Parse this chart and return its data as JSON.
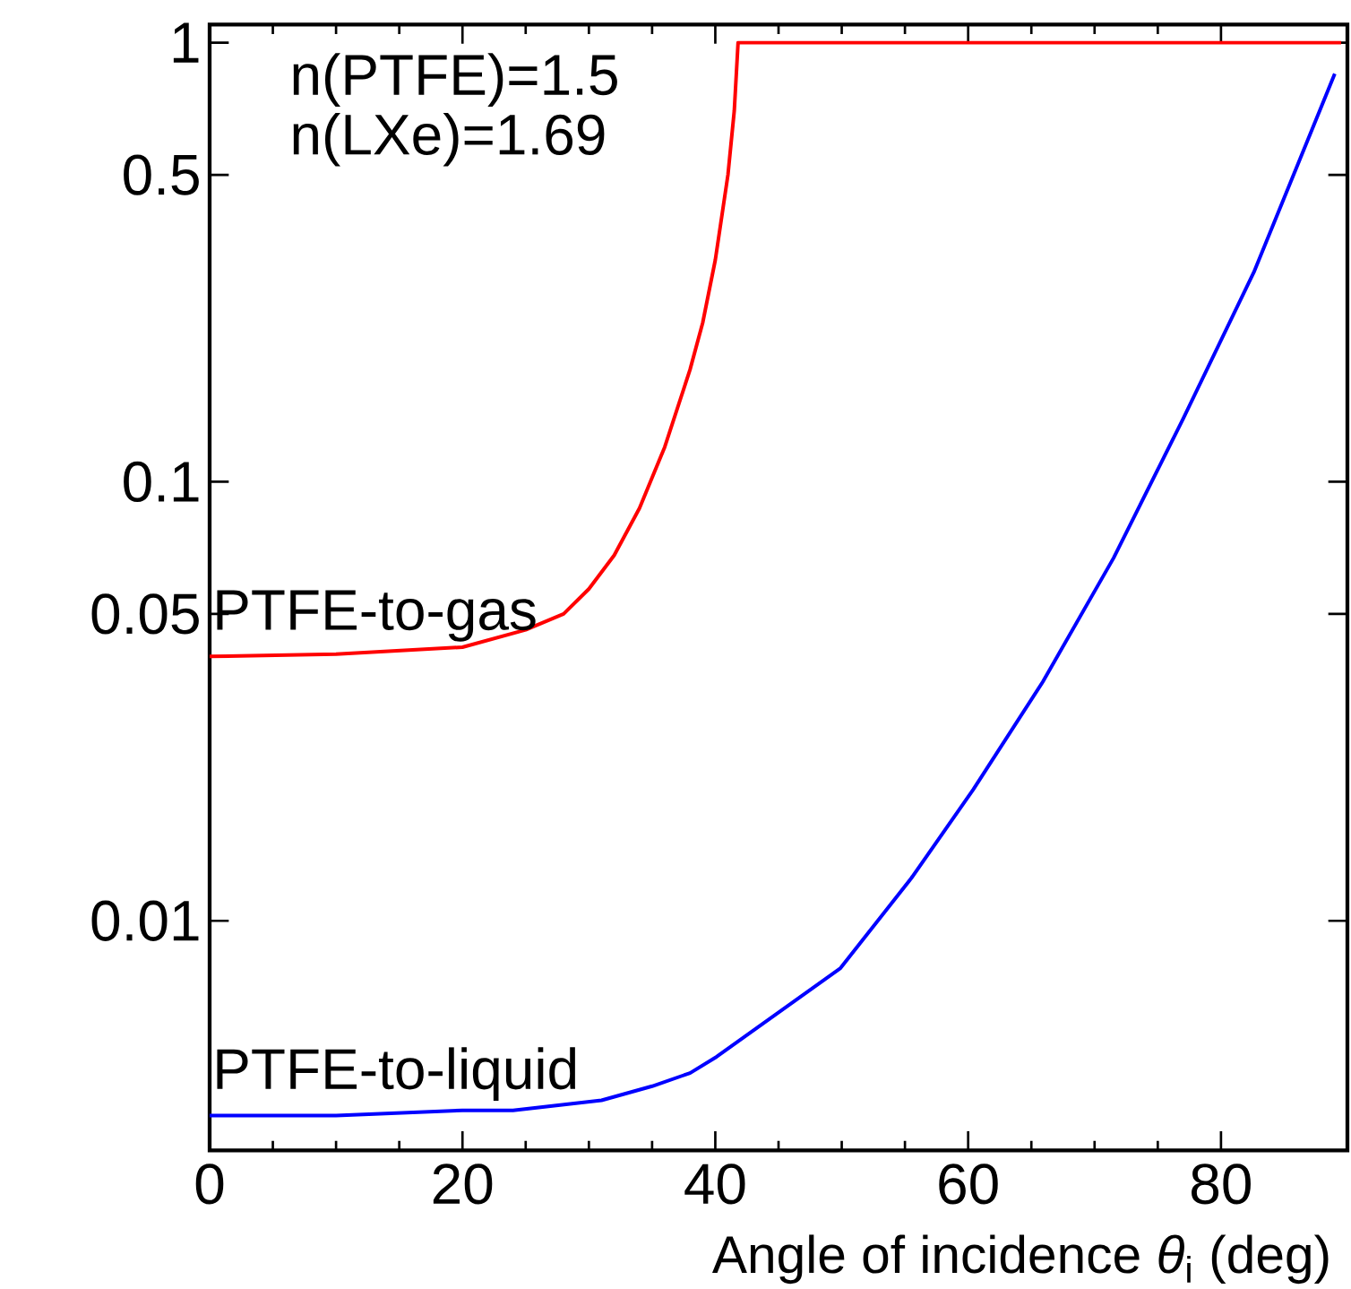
{
  "chart_data": {
    "type": "line",
    "xlabel": "Angle of incidence *θ*$_{i}$ (deg)",
    "annotations": [
      "n(PTFE)=1.5",
      "n(LXe)=1.69"
    ],
    "xlim": [
      0,
      90
    ],
    "xticks": [
      0,
      20,
      40,
      60,
      80
    ],
    "ylim": [
      0.003,
      1.1
    ],
    "yticks": [
      1,
      0.5,
      0.1,
      0.05,
      0.01
    ],
    "log": "y",
    "grid": false,
    "legend": false,
    "series": [
      {
        "name": "PTFE-to-gas",
        "color": "#ff0000",
        "x": [
          0,
          10,
          20,
          25,
          28,
          30,
          32,
          34,
          36,
          38,
          39,
          40,
          41,
          41.5,
          41.8,
          89.5
        ],
        "values": [
          0.04,
          0.0405,
          0.042,
          0.046,
          0.05,
          0.057,
          0.068,
          0.087,
          0.12,
          0.18,
          0.23,
          0.32,
          0.5,
          0.7,
          1,
          1
        ]
      },
      {
        "name": "PTFE-to-liquid",
        "color": "#0000ff",
        "x": [
          0,
          10,
          20,
          24,
          31,
          35,
          38,
          40.1,
          49.9,
          55.5,
          60.4,
          65.9,
          71.5,
          77,
          82.6,
          89
        ],
        "values": [
          0.0036,
          0.0036,
          0.0037,
          0.0037,
          0.0039,
          0.0042,
          0.0045,
          0.0049,
          0.0078,
          0.0125,
          0.0199,
          0.035,
          0.067,
          0.139,
          0.3,
          0.85
        ]
      }
    ]
  }
}
